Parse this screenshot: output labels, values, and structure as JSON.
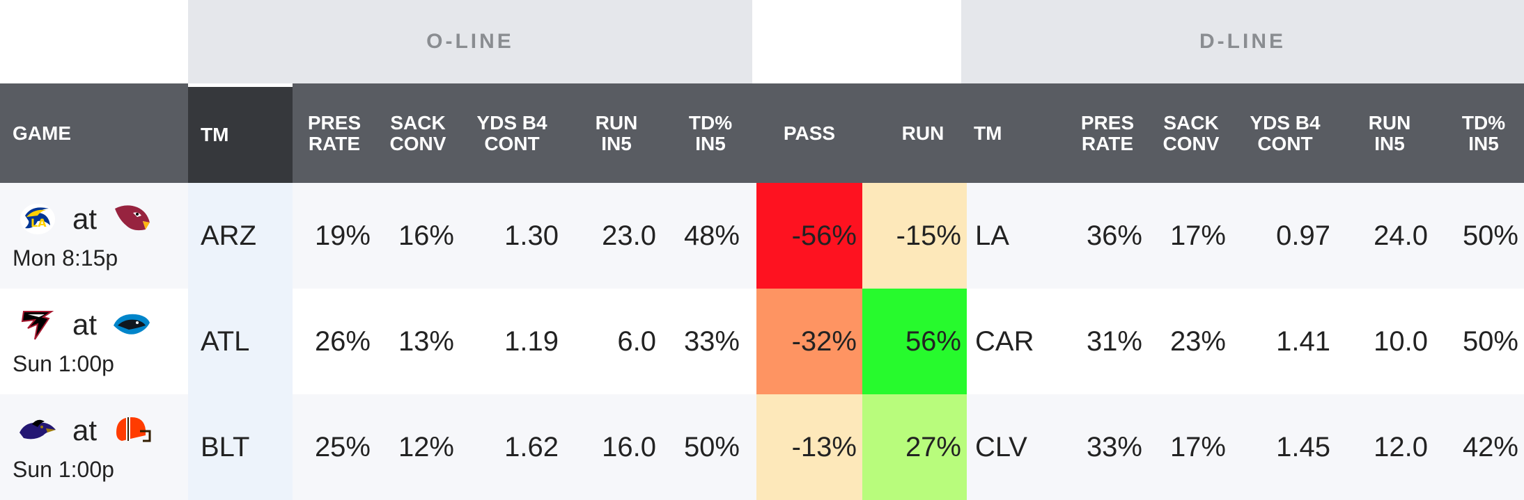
{
  "groups": {
    "oline": "O-LINE",
    "dline": "D-LINE"
  },
  "columns": {
    "game": "GAME",
    "tm_o": "TM",
    "pres_rate": [
      "PRES",
      "RATE"
    ],
    "sack_conv": [
      "SACK",
      "CONV"
    ],
    "yds_b4_cont": [
      "YDS B4",
      "CONT"
    ],
    "run_in5": [
      "RUN",
      "IN5"
    ],
    "td_in5": [
      "TD%",
      "IN5"
    ],
    "pass": "PASS",
    "run": "RUN",
    "tm_d": "TM",
    "d_pres_rate": [
      "PRES",
      "RATE"
    ],
    "d_sack_conv": [
      "SACK",
      "CONV"
    ],
    "d_yds_b4_cont": [
      "YDS B4",
      "CONT"
    ],
    "d_run_in5": [
      "RUN",
      "IN5"
    ],
    "d_td_in5": [
      "TD%",
      "IN5"
    ]
  },
  "rows": [
    {
      "at": "at",
      "time": "Mon 8:15p",
      "away_logo": "rams-logo-icon",
      "home_logo": "cardinals-logo-icon",
      "o_tm": "ARZ",
      "o_pres": "19%",
      "o_sack": "16%",
      "o_yds": "1.30",
      "o_run": "23.0",
      "o_td": "48%",
      "pass": "-56%",
      "pass_color": "#fe1220",
      "run": "-15%",
      "run_color": "#fde8ba",
      "d_tm": "LA",
      "d_pres": "36%",
      "d_sack": "17%",
      "d_yds": "0.97",
      "d_run": "24.0",
      "d_td": "50%",
      "row_bg": "#f6f7fa"
    },
    {
      "at": "at",
      "time": "Sun 1:00p",
      "away_logo": "falcons-logo-icon",
      "home_logo": "panthers-logo-icon",
      "o_tm": "ATL",
      "o_pres": "26%",
      "o_sack": "13%",
      "o_yds": "1.19",
      "o_run": "6.0",
      "o_td": "33%",
      "pass": "-32%",
      "pass_color": "#fe9462",
      "run": "56%",
      "run_color": "#27fa2d",
      "d_tm": "CAR",
      "d_pres": "31%",
      "d_sack": "23%",
      "d_yds": "1.41",
      "d_run": "10.0",
      "d_td": "50%",
      "row_bg": "#ffffff"
    },
    {
      "at": "at",
      "time": "Sun 1:00p",
      "away_logo": "ravens-logo-icon",
      "home_logo": "browns-logo-icon",
      "o_tm": "BLT",
      "o_pres": "25%",
      "o_sack": "12%",
      "o_yds": "1.62",
      "o_run": "16.0",
      "o_td": "50%",
      "pass": "-13%",
      "pass_color": "#fde8ba",
      "run": "27%",
      "run_color": "#b8fc7c",
      "d_tm": "CLV",
      "d_pres": "33%",
      "d_sack": "17%",
      "d_yds": "1.45",
      "d_run": "12.0",
      "d_td": "42%",
      "row_bg": "#f6f7fa"
    }
  ]
}
